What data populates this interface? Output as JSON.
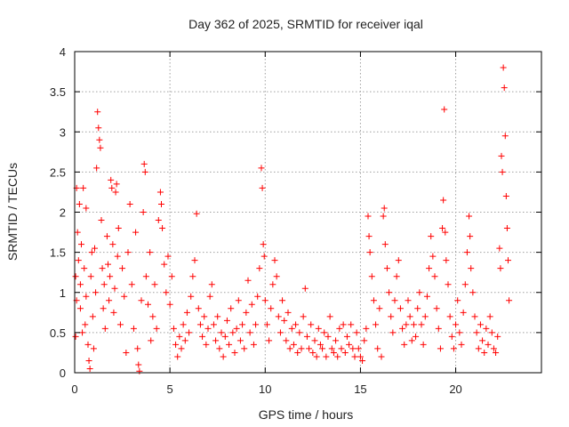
{
  "chart_data": {
    "type": "scatter",
    "title": "Day 362 of 2025, SRMTID for receiver iqal",
    "xlabel": "GPS time / hours",
    "ylabel": "SRMTID / TECUs",
    "xlim": [
      0,
      24.5
    ],
    "ylim": [
      0,
      4
    ],
    "xticks": [
      0,
      5,
      10,
      15,
      20
    ],
    "yticks": [
      0,
      0.5,
      1,
      1.5,
      2,
      2.5,
      3,
      3.5,
      4
    ],
    "xtick_labels": [
      "0",
      "5",
      "10",
      "15",
      "20"
    ],
    "ytick_labels": [
      "0",
      "0.5",
      "1",
      "1.5",
      "2",
      "2.5",
      "3",
      "3.5",
      "4"
    ],
    "grid": true,
    "marker": "+",
    "color": "#ff0000",
    "series": [
      {
        "name": "SRMTID",
        "points": [
          [
            0.05,
            0.45
          ],
          [
            0.05,
            1.2
          ],
          [
            0.1,
            2.3
          ],
          [
            0.1,
            0.9
          ],
          [
            0.15,
            1.75
          ],
          [
            0.2,
            1.4
          ],
          [
            0.25,
            2.1
          ],
          [
            0.3,
            0.8
          ],
          [
            0.3,
            1.1
          ],
          [
            0.35,
            1.6
          ],
          [
            0.4,
            0.5
          ],
          [
            0.45,
            2.3
          ],
          [
            0.5,
            1.3
          ],
          [
            0.55,
            0.6
          ],
          [
            0.6,
            2.05
          ],
          [
            0.6,
            0.95
          ],
          [
            0.7,
            0.35
          ],
          [
            0.75,
            0.15
          ],
          [
            0.8,
            0.05
          ],
          [
            0.85,
            1.2
          ],
          [
            0.9,
            1.5
          ],
          [
            0.95,
            0.7
          ],
          [
            1.0,
            0.3
          ],
          [
            1.05,
            1.55
          ],
          [
            1.1,
            1.0
          ],
          [
            1.15,
            2.55
          ],
          [
            1.2,
            3.25
          ],
          [
            1.25,
            3.05
          ],
          [
            1.3,
            2.9
          ],
          [
            1.35,
            2.8
          ],
          [
            1.4,
            1.9
          ],
          [
            1.45,
            1.3
          ],
          [
            1.5,
            0.8
          ],
          [
            1.55,
            1.1
          ],
          [
            1.6,
            0.55
          ],
          [
            1.7,
            1.7
          ],
          [
            1.75,
            1.35
          ],
          [
            1.8,
            0.9
          ],
          [
            1.85,
            1.2
          ],
          [
            1.9,
            2.4
          ],
          [
            1.95,
            2.3
          ],
          [
            2.0,
            1.6
          ],
          [
            2.05,
            0.75
          ],
          [
            2.1,
            1.05
          ],
          [
            2.15,
            2.25
          ],
          [
            2.2,
            2.35
          ],
          [
            2.25,
            1.45
          ],
          [
            2.3,
            1.8
          ],
          [
            2.4,
            0.6
          ],
          [
            2.5,
            1.3
          ],
          [
            2.6,
            0.95
          ],
          [
            2.7,
            0.25
          ],
          [
            2.8,
            1.5
          ],
          [
            2.9,
            2.1
          ],
          [
            3.0,
            1.1
          ],
          [
            3.1,
            0.55
          ],
          [
            3.2,
            1.75
          ],
          [
            3.3,
            0.3
          ],
          [
            3.35,
            0.1
          ],
          [
            3.4,
            0.02
          ],
          [
            3.5,
            0.9
          ],
          [
            3.6,
            2.0
          ],
          [
            3.65,
            2.6
          ],
          [
            3.7,
            2.5
          ],
          [
            3.75,
            1.2
          ],
          [
            3.85,
            0.85
          ],
          [
            3.95,
            1.5
          ],
          [
            4.0,
            0.4
          ],
          [
            4.1,
            0.7
          ],
          [
            4.2,
            1.1
          ],
          [
            4.3,
            0.55
          ],
          [
            4.4,
            1.9
          ],
          [
            4.5,
            2.25
          ],
          [
            4.55,
            2.1
          ],
          [
            4.6,
            1.8
          ],
          [
            4.7,
            1.35
          ],
          [
            4.8,
            1.0
          ],
          [
            4.9,
            1.45
          ],
          [
            5.0,
            0.85
          ],
          [
            5.1,
            1.2
          ],
          [
            5.2,
            0.55
          ],
          [
            5.3,
            0.35
          ],
          [
            5.4,
            0.2
          ],
          [
            5.5,
            0.45
          ],
          [
            5.6,
            0.3
          ],
          [
            5.7,
            0.6
          ],
          [
            5.8,
            0.4
          ],
          [
            5.9,
            0.75
          ],
          [
            6.0,
            0.5
          ],
          [
            6.1,
            0.95
          ],
          [
            6.2,
            1.2
          ],
          [
            6.3,
            1.4
          ],
          [
            6.4,
            1.98
          ],
          [
            6.5,
            0.8
          ],
          [
            6.6,
            0.6
          ],
          [
            6.7,
            0.45
          ],
          [
            6.8,
            0.7
          ],
          [
            6.9,
            0.35
          ],
          [
            7.0,
            0.55
          ],
          [
            7.1,
            0.95
          ],
          [
            7.2,
            1.1
          ],
          [
            7.3,
            0.6
          ],
          [
            7.4,
            0.4
          ],
          [
            7.5,
            0.7
          ],
          [
            7.6,
            0.3
          ],
          [
            7.7,
            0.5
          ],
          [
            7.8,
            0.2
          ],
          [
            7.9,
            0.45
          ],
          [
            8.0,
            0.65
          ],
          [
            8.1,
            0.35
          ],
          [
            8.2,
            0.8
          ],
          [
            8.3,
            0.5
          ],
          [
            8.4,
            0.25
          ],
          [
            8.5,
            0.55
          ],
          [
            8.6,
            0.9
          ],
          [
            8.7,
            0.4
          ],
          [
            8.8,
            0.6
          ],
          [
            8.9,
            0.3
          ],
          [
            9.0,
            0.75
          ],
          [
            9.1,
            1.15
          ],
          [
            9.2,
            0.5
          ],
          [
            9.3,
            0.85
          ],
          [
            9.4,
            0.35
          ],
          [
            9.5,
            0.6
          ],
          [
            9.6,
            0.95
          ],
          [
            9.7,
            1.3
          ],
          [
            9.8,
            2.55
          ],
          [
            9.85,
            2.3
          ],
          [
            9.9,
            1.6
          ],
          [
            9.95,
            1.45
          ],
          [
            10.0,
            0.9
          ],
          [
            10.1,
            0.6
          ],
          [
            10.2,
            0.4
          ],
          [
            10.3,
            0.8
          ],
          [
            10.4,
            1.1
          ],
          [
            10.5,
            1.4
          ],
          [
            10.6,
            1.2
          ],
          [
            10.7,
            0.7
          ],
          [
            10.8,
            0.5
          ],
          [
            10.9,
            0.9
          ],
          [
            11.0,
            0.65
          ],
          [
            11.1,
            0.4
          ],
          [
            11.2,
            0.75
          ],
          [
            11.3,
            0.3
          ],
          [
            11.4,
            0.55
          ],
          [
            11.5,
            0.35
          ],
          [
            11.6,
            0.6
          ],
          [
            11.7,
            0.25
          ],
          [
            11.8,
            0.5
          ],
          [
            11.9,
            0.3
          ],
          [
            12.0,
            0.7
          ],
          [
            12.1,
            1.05
          ],
          [
            12.2,
            0.45
          ],
          [
            12.3,
            0.3
          ],
          [
            12.4,
            0.6
          ],
          [
            12.5,
            0.25
          ],
          [
            12.6,
            0.4
          ],
          [
            12.7,
            0.2
          ],
          [
            12.8,
            0.55
          ],
          [
            12.9,
            0.35
          ],
          [
            13.0,
            0.3
          ],
          [
            13.1,
            0.5
          ],
          [
            13.2,
            0.2
          ],
          [
            13.3,
            0.45
          ],
          [
            13.4,
            0.7
          ],
          [
            13.5,
            0.3
          ],
          [
            13.6,
            0.25
          ],
          [
            13.7,
            0.4
          ],
          [
            13.8,
            0.2
          ],
          [
            13.9,
            0.55
          ],
          [
            14.0,
            0.3
          ],
          [
            14.1,
            0.6
          ],
          [
            14.2,
            0.25
          ],
          [
            14.3,
            0.45
          ],
          [
            14.4,
            0.35
          ],
          [
            14.5,
            0.6
          ],
          [
            14.6,
            0.3
          ],
          [
            14.7,
            0.2
          ],
          [
            14.8,
            0.5
          ],
          [
            14.9,
            0.3
          ],
          [
            15.0,
            0.2
          ],
          [
            15.1,
            0.15
          ],
          [
            15.2,
            0.4
          ],
          [
            15.3,
            0.55
          ],
          [
            15.4,
            1.95
          ],
          [
            15.45,
            1.7
          ],
          [
            15.5,
            1.5
          ],
          [
            15.6,
            1.2
          ],
          [
            15.7,
            0.9
          ],
          [
            15.8,
            0.6
          ],
          [
            15.9,
            0.3
          ],
          [
            16.0,
            0.8
          ],
          [
            16.1,
            0.2
          ],
          [
            16.2,
            1.95
          ],
          [
            16.25,
            2.05
          ],
          [
            16.3,
            1.6
          ],
          [
            16.4,
            1.3
          ],
          [
            16.5,
            1.0
          ],
          [
            16.6,
            0.7
          ],
          [
            16.7,
            0.5
          ],
          [
            16.8,
            0.9
          ],
          [
            16.9,
            1.2
          ],
          [
            17.0,
            1.4
          ],
          [
            17.1,
            0.8
          ],
          [
            17.2,
            0.55
          ],
          [
            17.3,
            0.35
          ],
          [
            17.4,
            0.6
          ],
          [
            17.5,
            0.9
          ],
          [
            17.6,
            0.7
          ],
          [
            17.7,
            0.4
          ],
          [
            17.8,
            0.6
          ],
          [
            17.9,
            0.45
          ],
          [
            18.0,
            0.8
          ],
          [
            18.1,
            1.0
          ],
          [
            18.2,
            0.6
          ],
          [
            18.3,
            0.35
          ],
          [
            18.4,
            0.7
          ],
          [
            18.5,
            0.95
          ],
          [
            18.6,
            1.3
          ],
          [
            18.7,
            1.7
          ],
          [
            18.8,
            1.45
          ],
          [
            18.9,
            1.2
          ],
          [
            19.0,
            0.8
          ],
          [
            19.1,
            0.55
          ],
          [
            19.2,
            0.3
          ],
          [
            19.3,
            1.8
          ],
          [
            19.35,
            2.15
          ],
          [
            19.4,
            3.28
          ],
          [
            19.45,
            1.75
          ],
          [
            19.5,
            1.4
          ],
          [
            19.6,
            1.1
          ],
          [
            19.7,
            0.7
          ],
          [
            19.8,
            0.45
          ],
          [
            19.9,
            0.3
          ],
          [
            20.0,
            0.6
          ],
          [
            20.1,
            0.9
          ],
          [
            20.2,
            0.5
          ],
          [
            20.3,
            0.35
          ],
          [
            20.4,
            0.75
          ],
          [
            20.5,
            1.1
          ],
          [
            20.6,
            1.5
          ],
          [
            20.7,
            1.95
          ],
          [
            20.75,
            1.7
          ],
          [
            20.8,
            1.3
          ],
          [
            20.9,
            1.0
          ],
          [
            21.0,
            0.7
          ],
          [
            21.1,
            0.5
          ],
          [
            21.2,
            0.3
          ],
          [
            21.3,
            0.6
          ],
          [
            21.4,
            0.4
          ],
          [
            21.5,
            0.25
          ],
          [
            21.6,
            0.55
          ],
          [
            21.7,
            0.35
          ],
          [
            21.8,
            0.7
          ],
          [
            21.9,
            0.5
          ],
          [
            22.0,
            0.3
          ],
          [
            22.1,
            0.25
          ],
          [
            22.2,
            0.45
          ],
          [
            22.3,
            1.55
          ],
          [
            22.35,
            1.3
          ],
          [
            22.4,
            2.7
          ],
          [
            22.45,
            2.5
          ],
          [
            22.5,
            3.8
          ],
          [
            22.55,
            3.55
          ],
          [
            22.6,
            2.95
          ],
          [
            22.65,
            2.2
          ],
          [
            22.7,
            1.8
          ],
          [
            22.75,
            1.4
          ],
          [
            22.8,
            0.9
          ]
        ]
      }
    ]
  }
}
